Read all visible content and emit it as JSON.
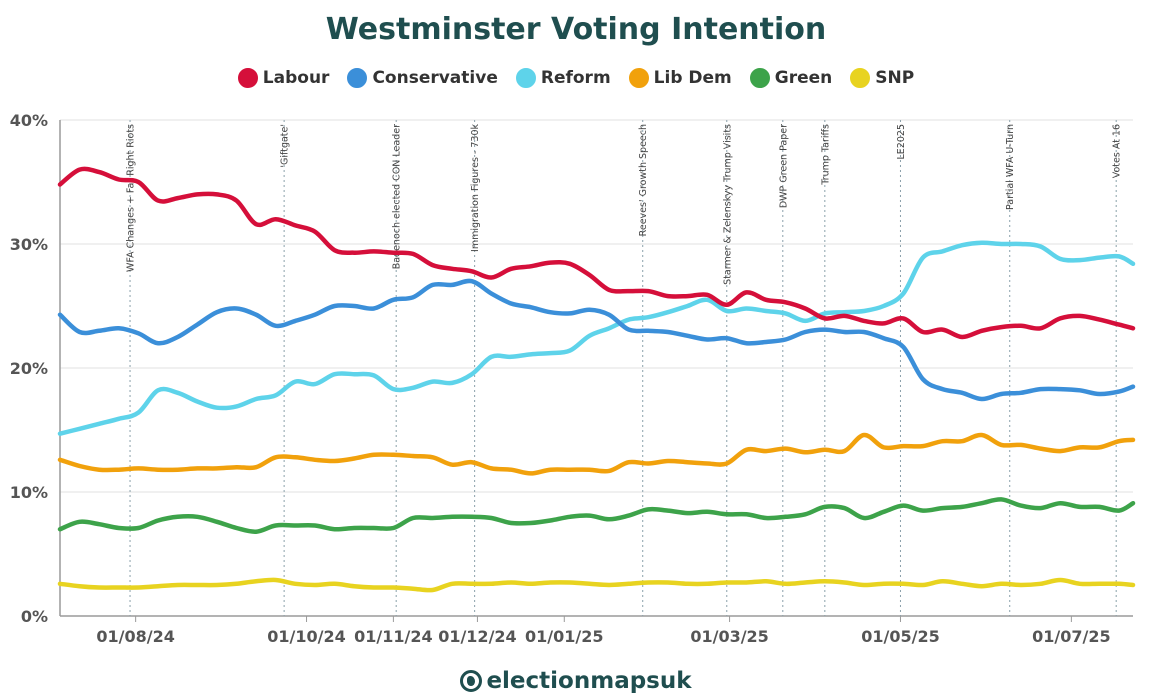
{
  "chart_data": {
    "type": "line",
    "title": "Westminster Voting Intention",
    "ylim": [
      0,
      40
    ],
    "y_ticks": [
      "0%",
      "10%",
      "20%",
      "30%",
      "40%"
    ],
    "y_tick_values": [
      0,
      10,
      20,
      30,
      40
    ],
    "x_range": [
      "2024-07-05",
      "2025-07-23"
    ],
    "x_ticks": [
      {
        "label": "01/08/24",
        "date": "2024-08-01"
      },
      {
        "label": "01/10/24",
        "date": "2024-10-01"
      },
      {
        "label": "01/11/24",
        "date": "2024-11-01"
      },
      {
        "label": "01/12/24",
        "date": "2024-12-01"
      },
      {
        "label": "01/01/25",
        "date": "2025-01-01"
      },
      {
        "label": "01/03/25",
        "date": "2025-03-01"
      },
      {
        "label": "01/05/25",
        "date": "2025-05-01"
      },
      {
        "label": "01/07/25",
        "date": "2025-07-01"
      }
    ],
    "grid": true,
    "legend_position": "top-center",
    "events": [
      {
        "label": "WFA Changes + Far Right Riots",
        "date": "2024-07-30"
      },
      {
        "label": "'Giftgate'",
        "date": "2024-09-23"
      },
      {
        "label": "Badenoch elected CON Leader",
        "date": "2024-11-02"
      },
      {
        "label": "Immigration Figures - 730k",
        "date": "2024-11-30"
      },
      {
        "label": "Reeves' Growth Speech",
        "date": "2025-01-29"
      },
      {
        "label": "Starmer & Zelenskyy Trump Visits",
        "date": "2025-02-28"
      },
      {
        "label": "DWP Green Paper",
        "date": "2025-03-20"
      },
      {
        "label": "Trump Tariffs",
        "date": "2025-04-04"
      },
      {
        "label": "LE2025",
        "date": "2025-05-01"
      },
      {
        "label": "Partial WFA U-Turn",
        "date": "2025-06-09"
      },
      {
        "label": "Votes At 16",
        "date": "2025-07-17"
      }
    ],
    "x": [
      "2024-07-05",
      "2024-07-12",
      "2024-07-19",
      "2024-07-26",
      "2024-08-02",
      "2024-08-09",
      "2024-08-16",
      "2024-08-23",
      "2024-08-30",
      "2024-09-06",
      "2024-09-13",
      "2024-09-20",
      "2024-09-27",
      "2024-10-04",
      "2024-10-11",
      "2024-10-18",
      "2024-10-25",
      "2024-11-01",
      "2024-11-08",
      "2024-11-15",
      "2024-11-22",
      "2024-11-29",
      "2024-12-06",
      "2024-12-13",
      "2024-12-20",
      "2024-12-27",
      "2025-01-03",
      "2025-01-10",
      "2025-01-17",
      "2025-01-24",
      "2025-01-31",
      "2025-02-07",
      "2025-02-14",
      "2025-02-21",
      "2025-02-28",
      "2025-03-07",
      "2025-03-14",
      "2025-03-21",
      "2025-03-28",
      "2025-04-04",
      "2025-04-11",
      "2025-04-18",
      "2025-04-25",
      "2025-05-02",
      "2025-05-09",
      "2025-05-16",
      "2025-05-23",
      "2025-05-30",
      "2025-06-06",
      "2025-06-13",
      "2025-06-20",
      "2025-06-27",
      "2025-07-04",
      "2025-07-11",
      "2025-07-18",
      "2025-07-23"
    ],
    "series": [
      {
        "name": "Labour",
        "color": "#d50f3a",
        "values": [
          34.8,
          36.0,
          35.8,
          35.2,
          35.0,
          33.5,
          33.7,
          34.0,
          34.0,
          33.5,
          31.6,
          32.0,
          31.5,
          31.0,
          29.5,
          29.3,
          29.4,
          29.3,
          29.2,
          28.3,
          28.0,
          27.8,
          27.3,
          28.0,
          28.2,
          28.5,
          28.4,
          27.5,
          26.3,
          26.2,
          26.2,
          25.8,
          25.8,
          25.9,
          25.1,
          26.1,
          25.5,
          25.3,
          24.8,
          24.0,
          24.2,
          23.8,
          23.6,
          24.0,
          22.9,
          23.1,
          22.5,
          23.0,
          23.3,
          23.4,
          23.2,
          24.0,
          24.2,
          23.9,
          23.5,
          23.2
        ]
      },
      {
        "name": "Conservative",
        "color": "#3b8fd9",
        "values": [
          24.3,
          22.9,
          23.0,
          23.2,
          22.8,
          22.0,
          22.5,
          23.5,
          24.5,
          24.8,
          24.3,
          23.4,
          23.8,
          24.3,
          25.0,
          25.0,
          24.8,
          25.5,
          25.7,
          26.7,
          26.7,
          27.0,
          26.0,
          25.2,
          24.9,
          24.5,
          24.4,
          24.7,
          24.3,
          23.1,
          23.0,
          22.9,
          22.6,
          22.3,
          22.4,
          22.0,
          22.1,
          22.3,
          22.9,
          23.1,
          22.9,
          22.9,
          22.4,
          21.7,
          19.1,
          18.3,
          18.0,
          17.5,
          17.9,
          18.0,
          18.3,
          18.3,
          18.2,
          17.9,
          18.1,
          18.5
        ]
      },
      {
        "name": "Reform",
        "color": "#5ed3ea",
        "values": [
          14.7,
          15.1,
          15.5,
          15.9,
          16.4,
          18.2,
          18.0,
          17.3,
          16.8,
          16.9,
          17.5,
          17.8,
          18.9,
          18.7,
          19.5,
          19.5,
          19.4,
          18.3,
          18.4,
          18.9,
          18.8,
          19.5,
          20.9,
          20.9,
          21.1,
          21.2,
          21.4,
          22.6,
          23.2,
          23.9,
          24.1,
          24.5,
          25.0,
          25.5,
          24.6,
          24.8,
          24.6,
          24.4,
          23.8,
          24.4,
          24.5,
          24.6,
          25.0,
          26.0,
          28.9,
          29.4,
          29.9,
          30.1,
          30.0,
          30.0,
          29.8,
          28.8,
          28.7,
          28.9,
          29.0,
          28.4
        ]
      },
      {
        "name": "Lib Dem",
        "color": "#f1a10c",
        "values": [
          12.6,
          12.1,
          11.8,
          11.8,
          11.9,
          11.8,
          11.8,
          11.9,
          11.9,
          12.0,
          12.0,
          12.8,
          12.8,
          12.6,
          12.5,
          12.7,
          13.0,
          13.0,
          12.9,
          12.8,
          12.2,
          12.4,
          11.9,
          11.8,
          11.5,
          11.8,
          11.8,
          11.8,
          11.7,
          12.4,
          12.3,
          12.5,
          12.4,
          12.3,
          12.3,
          13.4,
          13.3,
          13.5,
          13.2,
          13.4,
          13.3,
          14.6,
          13.6,
          13.7,
          13.7,
          14.1,
          14.1,
          14.6,
          13.8,
          13.8,
          13.5,
          13.3,
          13.6,
          13.6,
          14.1,
          14.2
        ]
      },
      {
        "name": "Green",
        "color": "#3da34a",
        "values": [
          7.0,
          7.6,
          7.4,
          7.1,
          7.1,
          7.7,
          8.0,
          8.0,
          7.6,
          7.1,
          6.8,
          7.3,
          7.3,
          7.3,
          7.0,
          7.1,
          7.1,
          7.1,
          7.9,
          7.9,
          8.0,
          8.0,
          7.9,
          7.5,
          7.5,
          7.7,
          8.0,
          8.1,
          7.8,
          8.1,
          8.6,
          8.5,
          8.3,
          8.4,
          8.2,
          8.2,
          7.9,
          8.0,
          8.2,
          8.8,
          8.7,
          7.9,
          8.4,
          8.9,
          8.5,
          8.7,
          8.8,
          9.1,
          9.4,
          8.9,
          8.7,
          9.1,
          8.8,
          8.8,
          8.5,
          9.1
        ]
      },
      {
        "name": "SNP",
        "color": "#e8d320",
        "values": [
          2.6,
          2.4,
          2.3,
          2.3,
          2.3,
          2.4,
          2.5,
          2.5,
          2.5,
          2.6,
          2.8,
          2.9,
          2.6,
          2.5,
          2.6,
          2.4,
          2.3,
          2.3,
          2.2,
          2.1,
          2.6,
          2.6,
          2.6,
          2.7,
          2.6,
          2.7,
          2.7,
          2.6,
          2.5,
          2.6,
          2.7,
          2.7,
          2.6,
          2.6,
          2.7,
          2.7,
          2.8,
          2.6,
          2.7,
          2.8,
          2.7,
          2.5,
          2.6,
          2.6,
          2.5,
          2.8,
          2.6,
          2.4,
          2.6,
          2.5,
          2.6,
          2.9,
          2.6,
          2.6,
          2.6,
          2.5
        ]
      }
    ]
  },
  "footer": {
    "brand": "electionmapsuk"
  }
}
